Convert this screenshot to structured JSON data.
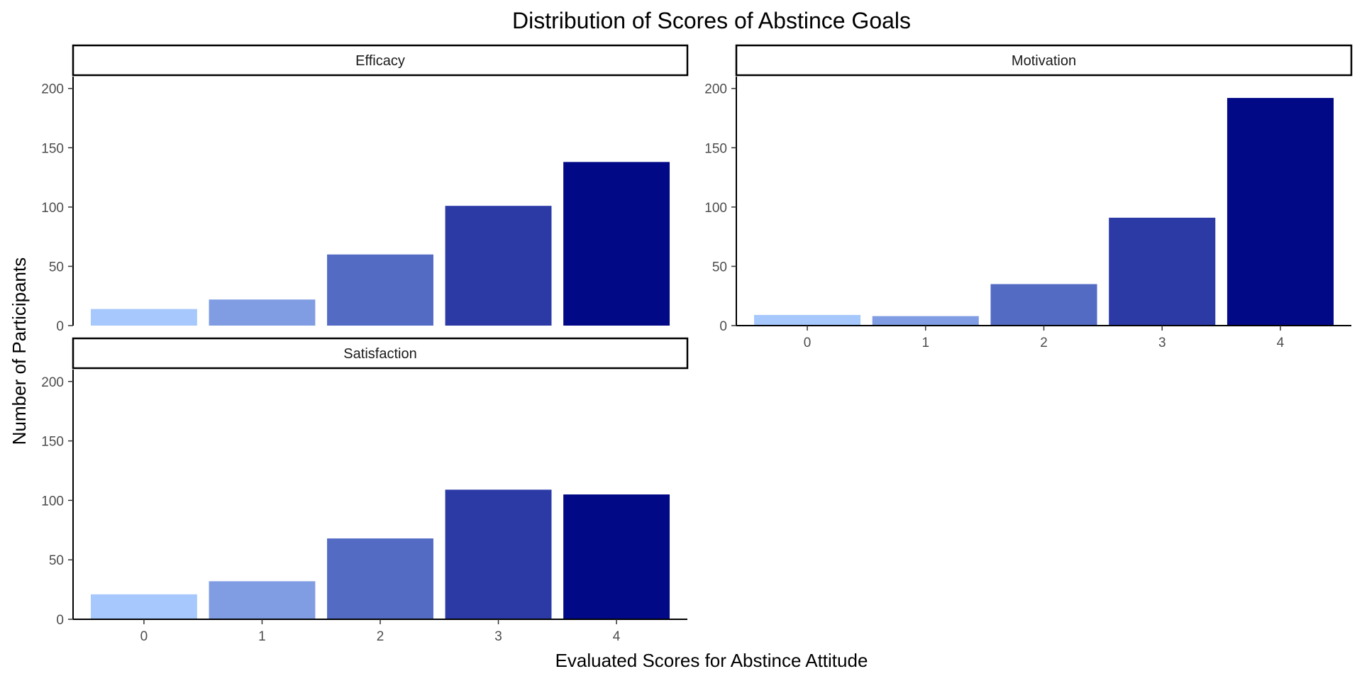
{
  "chart_data": {
    "type": "bar",
    "title": "Distribution of Scores of Abstince Goals",
    "xlabel": "Evaluated Scores for Abstince Attitude",
    "ylabel": "Number of Participants",
    "categories": [
      "0",
      "1",
      "2",
      "3",
      "4"
    ],
    "y_ticks": [
      0,
      50,
      100,
      150,
      200
    ],
    "ylim": [
      0,
      210
    ],
    "grid": false,
    "legend": "none",
    "fill_colors": [
      "#a7c8fc",
      "#809de3",
      "#546bc4",
      "#2c3aa6",
      "#020986"
    ],
    "panels": [
      {
        "name": "Efficacy",
        "values": [
          14,
          22,
          60,
          101,
          138
        ]
      },
      {
        "name": "Motivation",
        "values": [
          9,
          8,
          35,
          91,
          192
        ]
      },
      {
        "name": "Satisfaction",
        "values": [
          21,
          32,
          68,
          109,
          105
        ]
      }
    ]
  }
}
